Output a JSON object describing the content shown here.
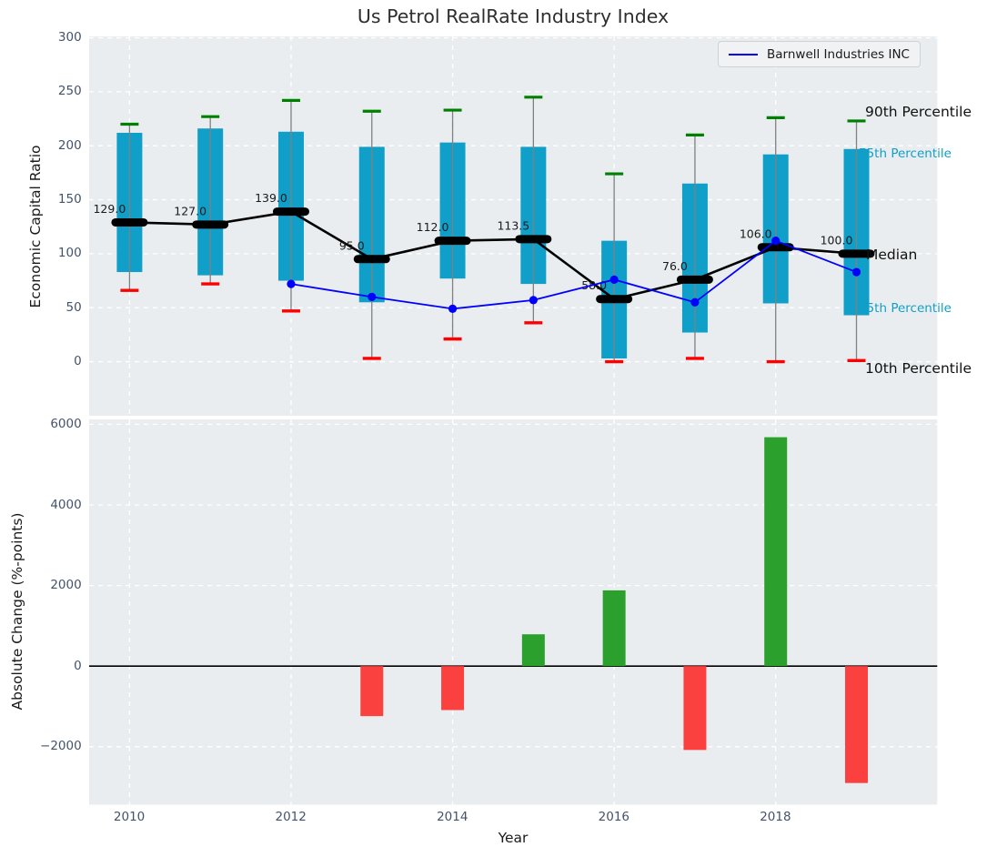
{
  "title": "Us Petrol RealRate Industry Index",
  "legend": {
    "label": "Barnwell Industries INC"
  },
  "colors": {
    "box": "#109fc9",
    "whisker": "#808080",
    "cap_90th": "#008000",
    "cap_10th": "#ff0000",
    "median": "#000000",
    "company_line": "#0000ff",
    "bar_positive": "#2ca02c",
    "bar_negative": "#fb4040",
    "axes_background": "#e9edef",
    "grid": "#ffffff",
    "tick_label": "#44536a",
    "zero_line": "#000000"
  },
  "chart_data": [
    {
      "type": "box-percentile+line",
      "title": "Us Petrol RealRate Industry Index",
      "ylabel": "Economic Capital Ratio",
      "yticks": [
        0,
        50,
        100,
        150,
        200,
        250,
        300
      ],
      "ylim": [
        -50.1,
        301.3
      ],
      "xlim": [
        2009.5,
        2020.0
      ],
      "grid": true,
      "legend_position": "upper right",
      "years": [
        2010,
        2011,
        2012,
        2013,
        2014,
        2015,
        2016,
        2017,
        2018,
        2019
      ],
      "percentiles": {
        "p90": [
          220,
          227,
          242,
          232,
          233,
          245,
          174,
          210,
          226,
          223
        ],
        "p75": [
          212,
          216,
          213,
          199,
          203,
          199,
          112,
          165,
          192,
          197
        ],
        "median": [
          129,
          127,
          139,
          95,
          112,
          113.5,
          58,
          76,
          106,
          100
        ],
        "p25": [
          83,
          80,
          75,
          55,
          77,
          72,
          3,
          27,
          54,
          43
        ],
        "p10": [
          66,
          72,
          47,
          3,
          21,
          36,
          0,
          3,
          0,
          1
        ]
      },
      "median_labels": [
        "129.0",
        "127.0",
        "139.0",
        "95.0",
        "112.0",
        "113.5",
        "58.0",
        "76.0",
        "106.0",
        "100.0"
      ],
      "series": [
        {
          "name": "Barnwell Industries INC",
          "x": [
            2012,
            2013,
            2014,
            2015,
            2016,
            2017,
            2018,
            2019
          ],
          "y": [
            72,
            60,
            49,
            57,
            76,
            55,
            112,
            83
          ]
        }
      ],
      "annotations": {
        "p90": "90th Percentile",
        "p75": "75th Percentile",
        "median": "Median",
        "p25": "25th Percentile",
        "p10": "10th Percentile"
      }
    },
    {
      "type": "bar",
      "ylabel": "Absolute Change (%-points)",
      "xlabel": "Year",
      "yticks": [
        -2000,
        0,
        2000,
        4000,
        6000
      ],
      "ylim": [
        -3438,
        6122
      ],
      "xlim": [
        2009.5,
        2020.0
      ],
      "xticks": [
        2010,
        2012,
        2014,
        2016,
        2018
      ],
      "grid": true,
      "x": [
        2013,
        2014,
        2015,
        2016,
        2017,
        2018,
        2019
      ],
      "values": [
        -1240,
        -1090,
        790,
        1880,
        -2080,
        5680,
        -2900
      ]
    }
  ]
}
